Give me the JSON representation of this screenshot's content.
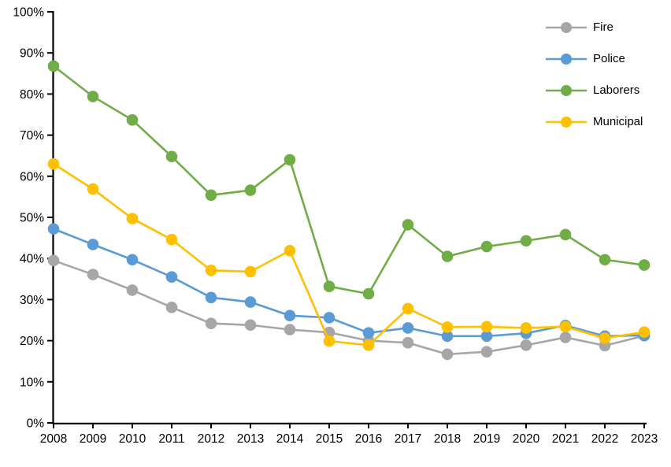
{
  "chart_data": {
    "type": "line",
    "title": "",
    "xlabel": "",
    "ylabel": "",
    "grid": false,
    "legend_position": "top-right-inside",
    "ylim": [
      0,
      100
    ],
    "y_tick_step": 10,
    "y_tick_labels": [
      "0%",
      "10%",
      "20%",
      "30%",
      "40%",
      "50%",
      "60%",
      "70%",
      "80%",
      "90%",
      "100%"
    ],
    "x": [
      "2008",
      "2009",
      "2010",
      "2011",
      "2012",
      "2013",
      "2014",
      "2015",
      "2016",
      "2017",
      "2018",
      "2019",
      "2020",
      "2021",
      "2022",
      "2023"
    ],
    "series": [
      {
        "name": "Fire",
        "color": "#A6A6A6",
        "values": [
          39.5,
          36.1,
          32.3,
          28.1,
          24.2,
          23.8,
          22.7,
          22.0,
          20.0,
          19.5,
          16.7,
          17.3,
          18.9,
          20.8,
          18.8,
          21.2
        ]
      },
      {
        "name": "Police",
        "color": "#5B9BD5",
        "values": [
          47.2,
          43.4,
          39.7,
          35.5,
          30.5,
          29.4,
          26.1,
          25.6,
          21.9,
          23.1,
          21.1,
          21.1,
          21.8,
          23.7,
          21.1,
          21.3
        ]
      },
      {
        "name": "Laborers",
        "color": "#70AD47",
        "values": [
          86.8,
          79.4,
          73.7,
          64.8,
          55.4,
          56.6,
          64.0,
          33.2,
          31.4,
          48.2,
          40.5,
          42.9,
          44.3,
          45.8,
          39.7,
          38.4
        ]
      },
      {
        "name": "Municipal",
        "color": "#FFC000",
        "values": [
          63.0,
          56.9,
          49.7,
          44.6,
          37.1,
          36.8,
          41.9,
          19.9,
          18.9,
          27.8,
          23.3,
          23.4,
          23.1,
          23.4,
          20.6,
          22.1
        ]
      }
    ],
    "axis_color": "#000000"
  }
}
